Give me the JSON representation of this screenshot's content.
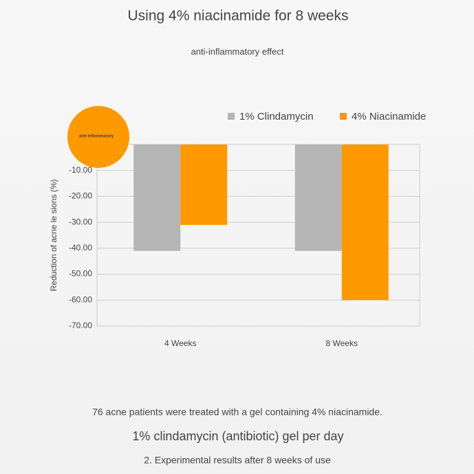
{
  "chart_data": {
    "type": "bar",
    "title": "Using 4% niacinamide for 8 weeks",
    "subtitle": "anti-inflammatory effect",
    "ylabel": "Reduction of acne le sions (%)",
    "categories": [
      "4 Weeks",
      "8 Weeks"
    ],
    "series": [
      {
        "name": "1% Clindamycin",
        "color": "#b5b5b5",
        "values": [
          -41,
          -41
        ]
      },
      {
        "name": "4% Niacinamide",
        "color": "#ff9900",
        "values": [
          -31,
          -60
        ]
      }
    ],
    "ylim": [
      -70,
      0
    ],
    "yticks": [
      {
        "value": -10,
        "label": "-10.00"
      },
      {
        "value": -20,
        "label": "-20.00"
      },
      {
        "value": -30,
        "label": "-30.00"
      },
      {
        "value": -40,
        "label": "-40.00"
      },
      {
        "value": -50,
        "label": "-50.00"
      },
      {
        "value": -60,
        "label": "-60.00"
      },
      {
        "value": -70,
        "label": "-70.00"
      }
    ],
    "grid": true,
    "legend": "top-right"
  },
  "badge": "anti-inflammatory",
  "notes": [
    "76 acne patients were treated with a gel containing 4% niacinamide.",
    "1% clindamycin (antibiotic) gel per day",
    "2. Experimental results after 8 weeks of use"
  ]
}
